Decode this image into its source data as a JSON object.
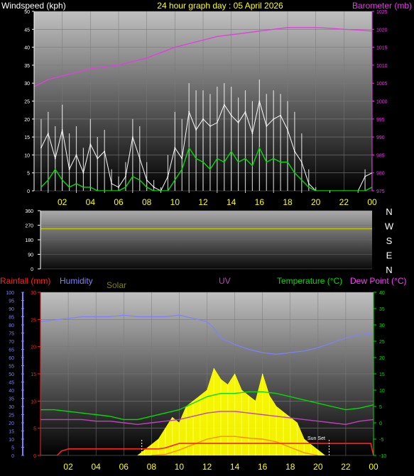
{
  "chart_data": [
    {
      "type": "line",
      "title": "24 hour graph day : 05 April 2026",
      "ylabel": "Windspeed (kph)",
      "y2label": "Barometer (mb)",
      "ylim": [
        0,
        50
      ],
      "y2lim": [
        975,
        1025
      ],
      "yticks": [
        "0",
        "5",
        "10",
        "15",
        "20",
        "25",
        "30",
        "35",
        "40",
        "45",
        "50"
      ],
      "y2ticks": [
        "975",
        "980",
        "985",
        "990",
        "995",
        "1000",
        "1005",
        "1010",
        "1015",
        "1020",
        "1025"
      ],
      "xticks": [
        "02",
        "04",
        "06",
        "08",
        "10",
        "12",
        "14",
        "16",
        "18",
        "20",
        "22",
        "00"
      ],
      "series": [
        {
          "name": "Windspeed",
          "color": "#ffffff",
          "x": [
            0.5,
            1.0,
            1.5,
            2.0,
            2.5,
            3.0,
            3.5,
            4.0,
            4.5,
            5.0,
            5.5,
            6.0,
            6.5,
            7.0,
            7.5,
            8.0,
            8.5,
            9.0,
            9.5,
            10.0,
            10.5,
            11.0,
            11.5,
            12.0,
            12.5,
            13.0,
            13.5,
            14.0,
            14.5,
            15.0,
            15.5,
            16.0,
            16.5,
            17.0,
            17.5,
            18.0,
            18.5,
            19.0,
            19.5,
            20.0,
            21.0,
            22.0,
            23.0,
            23.5,
            24.0
          ],
          "y": [
            12,
            16,
            9,
            17,
            6,
            10,
            5,
            13,
            9,
            11,
            2,
            1,
            4,
            15,
            9,
            3,
            1,
            0,
            4,
            12,
            9,
            22,
            17,
            20,
            18,
            19,
            24,
            21,
            19,
            22,
            16,
            25,
            18,
            20,
            21,
            17,
            11,
            8,
            2,
            0,
            0,
            0,
            0,
            4,
            5
          ]
        },
        {
          "name": "Gust",
          "color": "#ffffff",
          "x": [
            0.5,
            1.0,
            1.5,
            2.0,
            2.5,
            3.0,
            3.5,
            4.0,
            4.5,
            5.0,
            5.5,
            6.0,
            6.5,
            7.0,
            7.5,
            8.0,
            8.5,
            9.0,
            9.5,
            10.0,
            10.5,
            11.0,
            11.5,
            12.0,
            12.5,
            13.0,
            13.5,
            14.0,
            14.5,
            15.0,
            15.5,
            16.0,
            16.5,
            17.0,
            17.5,
            18.0,
            18.5,
            19.0,
            19.5,
            20.0,
            21.0,
            22.0,
            23.0,
            23.5,
            24.0
          ],
          "y": [
            20,
            22,
            18,
            24,
            16,
            18,
            12,
            20,
            15,
            17,
            6,
            4,
            8,
            20,
            18,
            8,
            3,
            1,
            10,
            22,
            20,
            30,
            28,
            28,
            27,
            29,
            30,
            29,
            26,
            28,
            25,
            31,
            27,
            28,
            27,
            25,
            22,
            16,
            6,
            1,
            0,
            0,
            0,
            6,
            9
          ]
        },
        {
          "name": "Average wind",
          "color": "#00dd00",
          "x": [
            0.5,
            1.0,
            1.5,
            2.0,
            2.5,
            3.0,
            3.5,
            4.0,
            4.5,
            5.0,
            5.5,
            6.0,
            6.5,
            7.0,
            7.5,
            8.0,
            8.5,
            9.0,
            9.5,
            10.0,
            10.5,
            11.0,
            11.5,
            12.0,
            12.5,
            13.0,
            13.5,
            14.0,
            14.5,
            15.0,
            15.5,
            16.0,
            16.5,
            17.0,
            17.5,
            18.0,
            18.5,
            19.0,
            19.5,
            20.0,
            21.0,
            22.0,
            23.0,
            23.5,
            24.0
          ],
          "y": [
            1,
            3,
            6,
            3,
            1,
            2,
            1,
            1,
            0,
            0,
            0,
            0,
            1,
            4,
            3,
            1,
            0,
            0,
            0,
            3,
            6,
            12,
            9,
            8,
            6,
            9,
            8,
            11,
            8,
            9,
            7,
            12,
            8,
            9,
            8,
            8,
            5,
            3,
            1,
            0,
            0,
            0,
            0,
            0,
            1
          ]
        },
        {
          "name": "Barometer",
          "color": "#e040e0",
          "axis": "y2",
          "x": [
            0,
            1,
            2,
            3,
            4,
            5,
            6,
            7,
            8,
            9,
            10,
            11,
            12,
            13,
            14,
            15,
            16,
            17,
            18,
            19,
            20,
            21,
            22,
            23,
            24
          ],
          "y": [
            1004,
            1006,
            1007,
            1008,
            1009,
            1009.5,
            1010,
            1011,
            1012,
            1013.5,
            1015,
            1016,
            1017,
            1018,
            1018.5,
            1019,
            1019.5,
            1020,
            1020.5,
            1020.5,
            1020.5,
            1020.3,
            1020,
            1019.8,
            1019.5
          ]
        }
      ]
    },
    {
      "type": "line",
      "ylabel": "",
      "yticks": [
        "0",
        "90",
        "180",
        "270",
        "360"
      ],
      "right_labels": [
        "N",
        "W",
        "S",
        "E",
        "N"
      ],
      "ylim": [
        0,
        360
      ],
      "xticks": [],
      "series": [
        {
          "name": "Wind direction",
          "color": "#c8c800",
          "x": [
            0,
            24
          ],
          "y": [
            248,
            248
          ]
        }
      ]
    },
    {
      "type": "line",
      "legend": [
        "Rainfall (mm)",
        "Humidity",
        "Solar",
        "UV",
        "Temperature (°C)",
        "Dew Point (°C)"
      ],
      "legend_colors": [
        "#ff2020",
        "#8080ff",
        "#808000",
        "#c040c0",
        "#00dd00",
        "#ff40ff"
      ],
      "humidity_ticks": [
        "0",
        "5",
        "10",
        "15",
        "20",
        "25",
        "30",
        "35",
        "40",
        "45",
        "50",
        "55",
        "60",
        "65",
        "70",
        "75",
        "80",
        "85",
        "90",
        "95",
        "100"
      ],
      "rain_ticks": [
        "0",
        "5",
        "10",
        "15",
        "20",
        "25",
        "30"
      ],
      "temp_ticks": [
        "-10",
        "-5",
        "0",
        "5",
        "10",
        "15",
        "20",
        "25",
        "30",
        "35",
        "40"
      ],
      "xticks": [
        "02",
        "04",
        "06",
        "08",
        "10",
        "12",
        "14",
        "16",
        "18",
        "20",
        "22",
        "00"
      ],
      "annotation": "Sun Set",
      "sunset_hour": 20.8,
      "sunrise_hour": 7.3,
      "series": [
        {
          "name": "Humidity",
          "axis": "humidity",
          "color": "#8080ff",
          "x": [
            0,
            1,
            2,
            3,
            4,
            5,
            6,
            7,
            8,
            9,
            10,
            10.5,
            11,
            12,
            12.5,
            13,
            14,
            15,
            16,
            17,
            18,
            19,
            20,
            21,
            22,
            23,
            24
          ],
          "y": [
            82,
            83,
            84,
            85,
            85,
            85,
            86,
            85,
            85,
            85,
            86,
            85,
            84,
            82,
            78,
            72,
            68,
            65,
            63,
            62,
            63,
            64,
            66,
            69,
            72,
            74,
            75
          ]
        },
        {
          "name": "Temperature",
          "axis": "temp",
          "color": "#00dd00",
          "x": [
            0,
            1,
            2,
            3,
            4,
            5,
            6,
            7,
            8,
            9,
            10,
            11,
            12,
            13,
            14,
            15,
            16,
            17,
            18,
            19,
            20,
            21,
            22,
            23,
            24
          ],
          "y": [
            4,
            4,
            3.5,
            3,
            2.5,
            2,
            1,
            1,
            2,
            3,
            4,
            6,
            8,
            9,
            9,
            9.5,
            9.5,
            9,
            8,
            7,
            6,
            5,
            4,
            4.5,
            5.5
          ]
        },
        {
          "name": "Dew Point",
          "axis": "temp",
          "color": "#c040c0",
          "x": [
            0,
            1,
            2,
            3,
            4,
            5,
            6,
            7,
            8,
            9,
            10,
            11,
            12,
            13,
            14,
            15,
            16,
            17,
            18,
            19,
            20,
            21,
            22,
            23,
            24
          ],
          "y": [
            1,
            1,
            1,
            1,
            0.5,
            0.5,
            0,
            -0.5,
            0,
            0.5,
            1,
            2,
            3,
            3.5,
            3.5,
            3,
            2.5,
            2,
            1.5,
            1,
            0.5,
            0,
            -0.5,
            0.5,
            1
          ]
        },
        {
          "name": "Rainfall",
          "axis": "rain",
          "color": "#ff2020",
          "x": [
            0,
            1.2,
            1.5,
            2,
            4,
            6,
            8,
            8.5,
            9,
            10,
            11,
            12,
            13,
            14,
            16,
            18,
            20,
            22,
            23.8,
            24
          ],
          "y": [
            0,
            0,
            0.8,
            1.2,
            1.2,
            1.2,
            1.2,
            1.2,
            1.4,
            2.2,
            2.2,
            2.2,
            2.2,
            2.2,
            2.2,
            2.2,
            2.2,
            2.2,
            2.2,
            0
          ]
        },
        {
          "name": "Solar",
          "axis": "rain",
          "color": "#ffff00",
          "x": [
            7.0,
            7.5,
            8.0,
            8.5,
            9.0,
            9.5,
            10.0,
            10.5,
            11.0,
            11.5,
            12.0,
            12.5,
            13.0,
            13.5,
            14.0,
            14.5,
            15.0,
            15.5,
            16.0,
            16.5,
            17.0,
            17.5,
            18.0,
            18.5,
            19.0,
            19.5,
            20.0,
            20.5
          ],
          "y": [
            0,
            1,
            2,
            3,
            5,
            7,
            6,
            9,
            10,
            11,
            12,
            16,
            14,
            13,
            15,
            12,
            11,
            10,
            15,
            11,
            9,
            8,
            7,
            6,
            3,
            2,
            1,
            0
          ]
        },
        {
          "name": "UV",
          "axis": "rain",
          "color": "#ff8c00",
          "x": [
            8,
            9,
            10,
            11,
            12,
            13,
            14,
            15,
            16,
            17,
            18,
            19,
            20
          ],
          "y": [
            0,
            0.2,
            1,
            2,
            3,
            3.5,
            3.5,
            3.2,
            3,
            2.5,
            1.5,
            0.5,
            0
          ]
        }
      ]
    }
  ]
}
